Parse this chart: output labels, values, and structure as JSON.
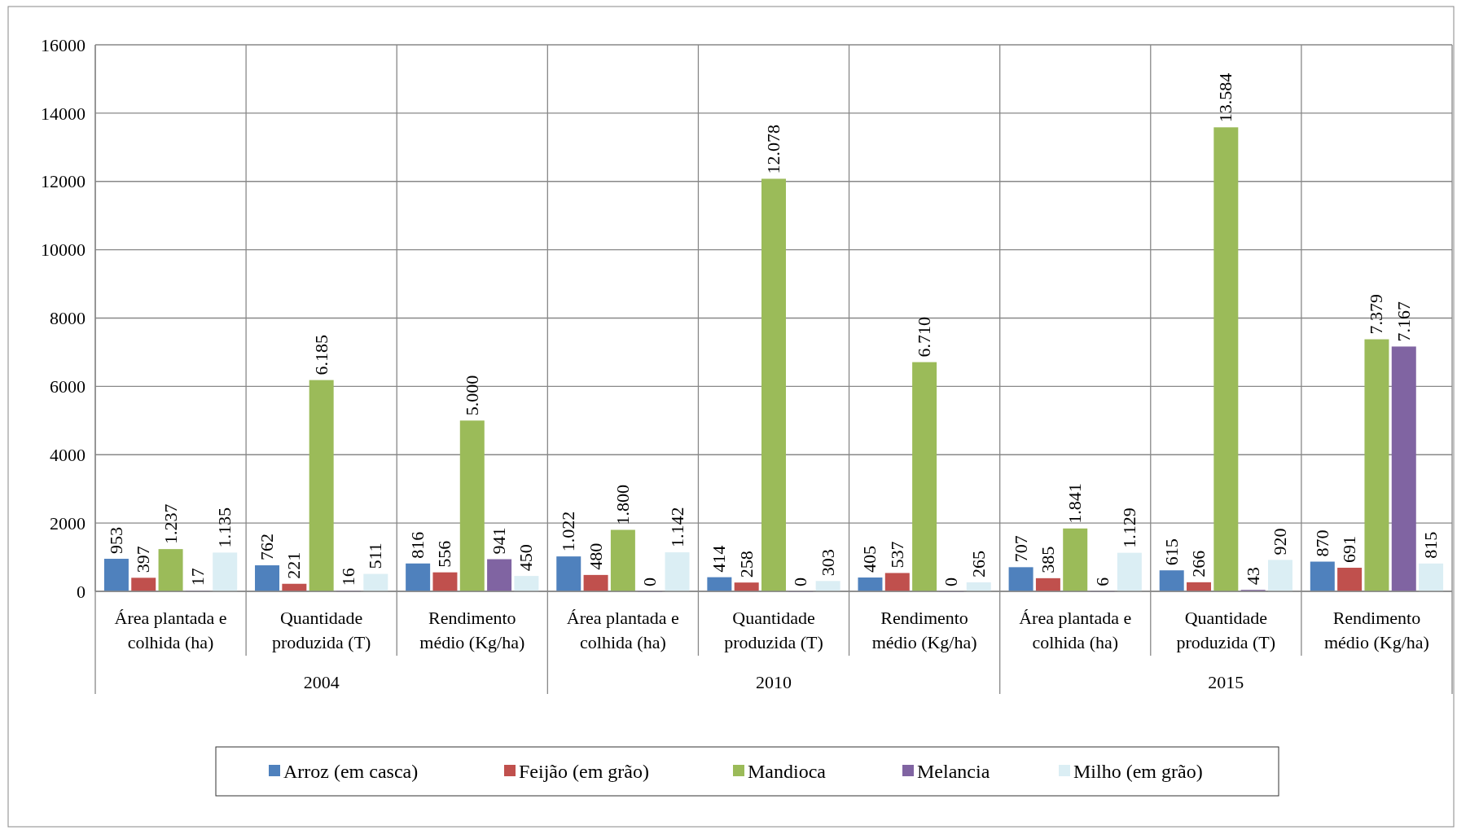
{
  "chart_data": {
    "type": "bar",
    "categories": [
      "Área plantada e colhida (ha)",
      "Quantidade produzida (T)",
      "Rendimento médio (Kg/ha)",
      "Área plantada e colhida (ha)",
      "Quantidade produzida (T)",
      "Rendimento médio (Kg/ha)",
      "Área plantada e colhida (ha)",
      "Quantidade produzida (T)",
      "Rendimento médio (Kg/ha)"
    ],
    "annotations": [
      "2004",
      "2010",
      "2015"
    ],
    "series": [
      {
        "name": "Arroz (em casca)",
        "color": "#4f81bd",
        "values": [
          953,
          762,
          816,
          1022,
          414,
          405,
          707,
          615,
          870
        ],
        "value_labels": [
          "953",
          "762",
          "816",
          "1.022",
          "414",
          "405",
          "707",
          "615",
          "870"
        ]
      },
      {
        "name": "Feijão (em grão)",
        "color": "#c0504d",
        "values": [
          397,
          221,
          556,
          480,
          258,
          537,
          385,
          266,
          691
        ],
        "value_labels": [
          "397",
          "221",
          "556",
          "480",
          "258",
          "537",
          "385",
          "266",
          "691"
        ]
      },
      {
        "name": "Mandioca",
        "color": "#9bbb59",
        "values": [
          1237,
          6185,
          5000,
          1800,
          12078,
          6710,
          1841,
          13584,
          7379
        ],
        "value_labels": [
          "1.237",
          "6.185",
          "5.000",
          "1.800",
          "12.078",
          "6.710",
          "1.841",
          "13.584",
          "7.379"
        ]
      },
      {
        "name": "Melancia",
        "color": "#8064a2",
        "values": [
          17,
          16,
          941,
          0,
          0,
          0,
          6,
          43,
          7167
        ],
        "value_labels": [
          "17",
          "16",
          "941",
          "0",
          "0",
          "0",
          "6",
          "43",
          "7.167"
        ]
      },
      {
        "name": "Milho (em grão)",
        "color": "#dbeef4",
        "values": [
          1135,
          511,
          450,
          1142,
          303,
          265,
          1129,
          920,
          815
        ],
        "value_labels": [
          "1.135",
          "511",
          "450",
          "1.142",
          "303",
          "265",
          "1.129",
          "920",
          "815"
        ]
      }
    ],
    "ylim": [
      0,
      16000
    ],
    "yticks": [
      0,
      2000,
      4000,
      6000,
      8000,
      10000,
      12000,
      14000,
      16000
    ],
    "grid": true,
    "legend": "bottom"
  }
}
